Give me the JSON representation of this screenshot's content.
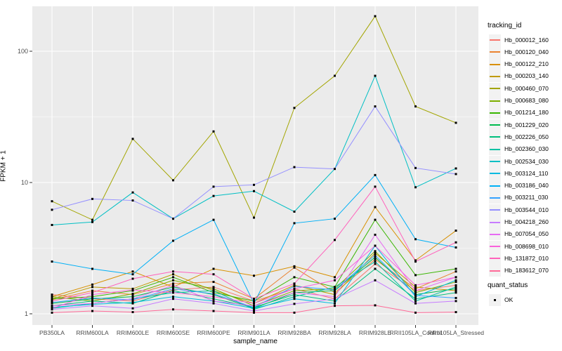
{
  "figure": {
    "y_axis_title": "FPKM + 1",
    "x_axis_title": "sample_name",
    "legend": {
      "tracking_title": "tracking_id",
      "quant_title": "quant_status",
      "quant_items": [
        {
          "label": "OK",
          "shape": "black-square"
        }
      ]
    }
  },
  "colors": {
    "panel_bg": "#EBEBEB",
    "grid_major": "#FFFFFF",
    "grid_minor": "#F7F7F7",
    "tick_mark": "#333333",
    "tick_label": "#4D4D4D",
    "point": "#000000",
    "legend_key_bg": "#F2F2F2"
  },
  "chart_data": {
    "type": "line",
    "x_type": "categorical",
    "y_scale": "log10",
    "ylim": [
      1,
      220
    ],
    "y_ticks": [
      1,
      10,
      100
    ],
    "y_minor_ticks": [
      3.162,
      31.62
    ],
    "grid": true,
    "legend_position": "right",
    "point_marker": "filled-black-square",
    "xlabel": "sample_name",
    "ylabel": "FPKM + 1",
    "categories": [
      "PB350LA",
      "RRIM600LA",
      "RRIM600LE",
      "RRIM600SE",
      "RRIM600PE",
      "RRIM901LA",
      "RRIM928BA",
      "RRIM928LA",
      "RRIM928LE",
      "RRII105LA_Control",
      "RRII105LA_Stressed"
    ],
    "series": [
      {
        "name": "Hb_000012_160",
        "color": "#F8766D",
        "values": [
          1.4,
          1.3,
          1.25,
          1.52,
          1.6,
          1.25,
          1.55,
          1.3,
          2.4,
          1.5,
          1.65
        ]
      },
      {
        "name": "Hb_000120_040",
        "color": "#EA8331",
        "values": [
          1.28,
          1.5,
          1.4,
          1.7,
          1.75,
          1.3,
          2.25,
          1.45,
          2.6,
          1.55,
          2.1
        ]
      },
      {
        "name": "Hb_000122_210",
        "color": "#D89000",
        "values": [
          1.35,
          1.67,
          2.1,
          1.6,
          2.2,
          1.95,
          2.3,
          1.9,
          6.5,
          2.55,
          4.3
        ]
      },
      {
        "name": "Hb_000203_140",
        "color": "#C09B00",
        "values": [
          1.3,
          1.6,
          1.55,
          2.0,
          1.5,
          1.2,
          1.65,
          1.4,
          2.9,
          1.6,
          1.5
        ]
      },
      {
        "name": "Hb_000460_070",
        "color": "#A3A500",
        "values": [
          7.2,
          5.2,
          21.5,
          10.4,
          24.5,
          5.4,
          37.0,
          65.0,
          185,
          38.0,
          28.5
        ]
      },
      {
        "name": "Hb_000683_080",
        "color": "#7CAE00",
        "values": [
          1.35,
          1.25,
          1.42,
          1.8,
          1.55,
          1.15,
          1.5,
          1.55,
          3.0,
          1.45,
          1.75
        ]
      },
      {
        "name": "Hb_001214_180",
        "color": "#39B600",
        "values": [
          1.3,
          1.35,
          1.5,
          1.9,
          1.45,
          1.25,
          1.9,
          1.6,
          5.2,
          1.97,
          2.2
        ]
      },
      {
        "name": "Hb_001229_020",
        "color": "#00BB4E",
        "values": [
          1.2,
          1.3,
          1.35,
          1.6,
          1.4,
          1.1,
          1.45,
          1.5,
          2.7,
          1.4,
          1.55
        ]
      },
      {
        "name": "Hb_002226_050",
        "color": "#00BF7D",
        "values": [
          1.15,
          1.25,
          1.2,
          1.5,
          1.3,
          1.12,
          1.4,
          1.25,
          2.2,
          1.3,
          1.45
        ]
      },
      {
        "name": "Hb_002360_030",
        "color": "#00C1A3",
        "values": [
          1.1,
          1.2,
          1.3,
          1.45,
          1.5,
          1.08,
          1.35,
          1.6,
          2.5,
          1.25,
          1.6
        ]
      },
      {
        "name": "Hb_002534_030",
        "color": "#00BFC4",
        "values": [
          4.75,
          5.0,
          8.4,
          5.3,
          7.9,
          8.6,
          6.0,
          12.7,
          65.0,
          9.2,
          12.8
        ]
      },
      {
        "name": "Hb_003124_110",
        "color": "#00BAE0",
        "values": [
          1.12,
          1.18,
          1.22,
          1.35,
          1.25,
          1.1,
          1.3,
          1.2,
          3.3,
          1.35,
          1.8
        ]
      },
      {
        "name": "Hb_003186_040",
        "color": "#00B0F6",
        "values": [
          2.5,
          2.2,
          2.0,
          3.6,
          5.2,
          1.2,
          4.9,
          5.3,
          11.4,
          3.7,
          3.2
        ]
      },
      {
        "name": "Hb_003211_030",
        "color": "#35A2FF",
        "values": [
          1.22,
          1.32,
          1.28,
          1.55,
          1.42,
          1.12,
          1.62,
          1.52,
          2.8,
          1.38,
          1.32
        ]
      },
      {
        "name": "Hb_003544_010",
        "color": "#9590FF",
        "values": [
          6.2,
          7.5,
          7.3,
          5.3,
          9.3,
          9.6,
          13.1,
          12.7,
          38.0,
          12.9,
          11.6
        ]
      },
      {
        "name": "Hb_004218_260",
        "color": "#C77CFF",
        "values": [
          1.08,
          1.15,
          1.1,
          1.3,
          1.2,
          1.05,
          1.19,
          1.3,
          1.8,
          1.2,
          1.25
        ]
      },
      {
        "name": "Hb_007054_050",
        "color": "#E76BF3",
        "values": [
          1.15,
          1.2,
          1.3,
          1.65,
          1.25,
          1.15,
          1.45,
          1.35,
          4.0,
          1.5,
          1.9
        ]
      },
      {
        "name": "Hb_008698_010",
        "color": "#FA62DB",
        "values": [
          1.1,
          1.4,
          1.52,
          1.45,
          1.35,
          1.2,
          1.55,
          1.8,
          3.3,
          1.65,
          1.9
        ]
      },
      {
        "name": "Hb_131872_010",
        "color": "#FF62BC",
        "values": [
          1.25,
          1.45,
          1.85,
          2.1,
          2.0,
          1.3,
          1.7,
          3.65,
          9.3,
          2.5,
          3.5
        ]
      },
      {
        "name": "Hb_183612_070",
        "color": "#FF6A98",
        "values": [
          1.02,
          1.05,
          1.03,
          1.08,
          1.05,
          1.02,
          1.02,
          1.15,
          1.16,
          1.02,
          1.03
        ]
      }
    ]
  }
}
